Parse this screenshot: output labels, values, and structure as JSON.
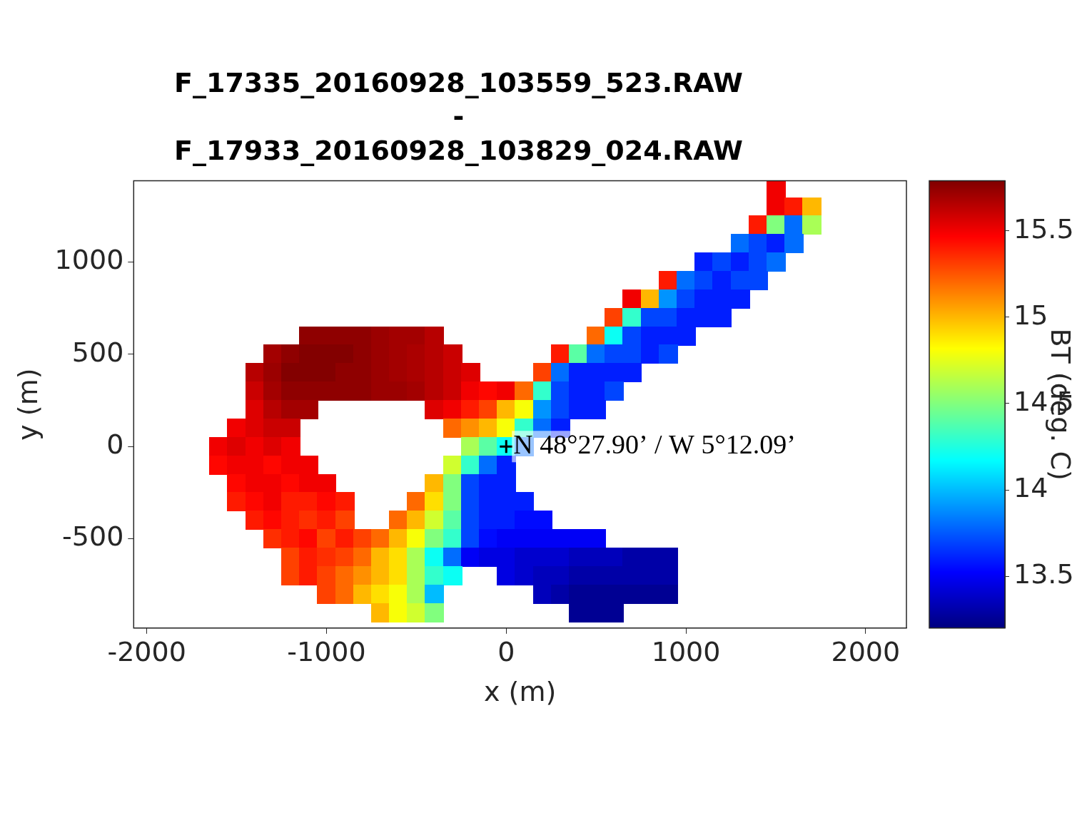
{
  "chart_data": {
    "type": "heatmap",
    "title": [
      "F_17335_20160928_103559_523.RAW",
      "-",
      "F_17933_20160928_103829_024.RAW"
    ],
    "x_label": "x (m)",
    "y_label": "y (m)",
    "xlim": [
      -2073,
      2227
    ],
    "ylim": [
      -984,
      1441
    ],
    "xticks": [
      -2000,
      -1000,
      0,
      1000,
      2000
    ],
    "yticks": [
      -500,
      0,
      500,
      1000
    ],
    "cell_size": 100,
    "cells": [
      [
        1500,
        1400,
        15.5
      ],
      [
        1500,
        1300,
        15.5
      ],
      [
        1600,
        1300,
        15.4
      ],
      [
        1700,
        1300,
        15.0
      ],
      [
        1400,
        1200,
        15.4
      ],
      [
        1500,
        1200,
        14.5
      ],
      [
        1600,
        1200,
        13.8
      ],
      [
        1700,
        1200,
        14.6
      ],
      [
        1300,
        1100,
        13.8
      ],
      [
        1400,
        1100,
        13.7
      ],
      [
        1500,
        1100,
        13.6
      ],
      [
        1600,
        1100,
        13.8
      ],
      [
        1100,
        1000,
        13.6
      ],
      [
        1200,
        1000,
        13.7
      ],
      [
        1300,
        1000,
        13.6
      ],
      [
        1400,
        1000,
        13.7
      ],
      [
        1500,
        1000,
        13.8
      ],
      [
        900,
        900,
        15.4
      ],
      [
        1000,
        900,
        13.8
      ],
      [
        1100,
        900,
        13.7
      ],
      [
        1200,
        900,
        13.6
      ],
      [
        1300,
        900,
        13.7
      ],
      [
        1400,
        900,
        13.7
      ],
      [
        700,
        800,
        15.5
      ],
      [
        800,
        800,
        15.0
      ],
      [
        900,
        800,
        13.9
      ],
      [
        1000,
        800,
        13.7
      ],
      [
        1100,
        800,
        13.6
      ],
      [
        1200,
        800,
        13.6
      ],
      [
        1300,
        800,
        13.6
      ],
      [
        600,
        700,
        15.3
      ],
      [
        700,
        700,
        14.3
      ],
      [
        800,
        700,
        13.7
      ],
      [
        900,
        700,
        13.7
      ],
      [
        1000,
        700,
        13.6
      ],
      [
        1100,
        700,
        13.6
      ],
      [
        1200,
        700,
        13.6
      ],
      [
        -1100,
        600,
        15.75
      ],
      [
        -1000,
        600,
        15.75
      ],
      [
        -900,
        600,
        15.75
      ],
      [
        -800,
        600,
        15.75
      ],
      [
        -700,
        600,
        15.72
      ],
      [
        -600,
        600,
        15.7
      ],
      [
        -500,
        600,
        15.7
      ],
      [
        -400,
        600,
        15.65
      ],
      [
        500,
        600,
        15.2
      ],
      [
        600,
        600,
        14.2
      ],
      [
        700,
        600,
        13.7
      ],
      [
        800,
        600,
        13.6
      ],
      [
        900,
        600,
        13.6
      ],
      [
        1000,
        600,
        13.6
      ],
      [
        -1300,
        500,
        15.7
      ],
      [
        -1200,
        500,
        15.75
      ],
      [
        -1100,
        500,
        15.78
      ],
      [
        -1000,
        500,
        15.78
      ],
      [
        -900,
        500,
        15.78
      ],
      [
        -800,
        500,
        15.75
      ],
      [
        -700,
        500,
        15.72
      ],
      [
        -600,
        500,
        15.7
      ],
      [
        -500,
        500,
        15.68
      ],
      [
        -400,
        500,
        15.65
      ],
      [
        -300,
        500,
        15.6
      ],
      [
        300,
        500,
        15.4
      ],
      [
        400,
        500,
        14.4
      ],
      [
        500,
        500,
        13.8
      ],
      [
        600,
        500,
        13.7
      ],
      [
        700,
        500,
        13.7
      ],
      [
        800,
        500,
        13.6
      ],
      [
        900,
        500,
        13.7
      ],
      [
        -1400,
        400,
        15.65
      ],
      [
        -1300,
        400,
        15.72
      ],
      [
        -1200,
        400,
        15.78
      ],
      [
        -1100,
        400,
        15.78
      ],
      [
        -1000,
        400,
        15.78
      ],
      [
        -900,
        400,
        15.75
      ],
      [
        -800,
        400,
        15.75
      ],
      [
        -700,
        400,
        15.72
      ],
      [
        -600,
        400,
        15.7
      ],
      [
        -500,
        400,
        15.68
      ],
      [
        -400,
        400,
        15.65
      ],
      [
        -300,
        400,
        15.6
      ],
      [
        -200,
        400,
        15.55
      ],
      [
        200,
        400,
        15.3
      ],
      [
        300,
        400,
        13.8
      ],
      [
        400,
        400,
        13.6
      ],
      [
        500,
        400,
        13.6
      ],
      [
        600,
        400,
        13.6
      ],
      [
        700,
        400,
        13.6
      ],
      [
        -1400,
        300,
        15.6
      ],
      [
        -1300,
        300,
        15.7
      ],
      [
        -1200,
        300,
        15.75
      ],
      [
        -1100,
        300,
        15.75
      ],
      [
        -1000,
        300,
        15.75
      ],
      [
        -900,
        300,
        15.75
      ],
      [
        -800,
        300,
        15.75
      ],
      [
        -700,
        300,
        15.72
      ],
      [
        -600,
        300,
        15.72
      ],
      [
        -500,
        300,
        15.7
      ],
      [
        -400,
        300,
        15.65
      ],
      [
        -300,
        300,
        15.6
      ],
      [
        -200,
        300,
        15.5
      ],
      [
        -100,
        300,
        15.45
      ],
      [
        0,
        300,
        15.5
      ],
      [
        100,
        300,
        15.2
      ],
      [
        200,
        300,
        14.3
      ],
      [
        300,
        300,
        13.7
      ],
      [
        400,
        300,
        13.6
      ],
      [
        500,
        300,
        13.6
      ],
      [
        600,
        300,
        13.7
      ],
      [
        -1400,
        200,
        15.55
      ],
      [
        -1300,
        200,
        15.65
      ],
      [
        -1200,
        200,
        15.7
      ],
      [
        -1100,
        200,
        15.7
      ],
      [
        -400,
        200,
        15.55
      ],
      [
        -300,
        200,
        15.5
      ],
      [
        -200,
        200,
        15.4
      ],
      [
        -100,
        200,
        15.3
      ],
      [
        0,
        200,
        15.0
      ],
      [
        100,
        200,
        14.8
      ],
      [
        200,
        200,
        13.9
      ],
      [
        300,
        200,
        13.7
      ],
      [
        400,
        200,
        13.6
      ],
      [
        500,
        200,
        13.6
      ],
      [
        -1500,
        100,
        15.5
      ],
      [
        -1400,
        100,
        15.55
      ],
      [
        -1300,
        100,
        15.6
      ],
      [
        -1200,
        100,
        15.6
      ],
      [
        -300,
        100,
        15.2
      ],
      [
        -200,
        100,
        15.1
      ],
      [
        -100,
        100,
        15.0
      ],
      [
        0,
        100,
        14.8
      ],
      [
        100,
        100,
        14.3
      ],
      [
        200,
        100,
        13.8
      ],
      [
        300,
        100,
        13.6
      ],
      [
        -1600,
        0,
        15.5
      ],
      [
        -1500,
        0,
        15.55
      ],
      [
        -1400,
        0,
        15.5
      ],
      [
        -1300,
        0,
        15.55
      ],
      [
        -1200,
        0,
        15.5
      ],
      [
        -200,
        0,
        14.6
      ],
      [
        -100,
        0,
        14.4
      ],
      [
        0,
        0,
        14.2
      ],
      [
        100,
        0,
        13.8
      ],
      [
        -1600,
        -100,
        15.45
      ],
      [
        -1500,
        -100,
        15.5
      ],
      [
        -1400,
        -100,
        15.5
      ],
      [
        -1300,
        -100,
        15.45
      ],
      [
        -1200,
        -100,
        15.5
      ],
      [
        -1100,
        -100,
        15.5
      ],
      [
        -300,
        -100,
        14.7
      ],
      [
        -200,
        -100,
        14.3
      ],
      [
        -100,
        -100,
        13.8
      ],
      [
        0,
        -100,
        13.6
      ],
      [
        -1500,
        -200,
        15.45
      ],
      [
        -1400,
        -200,
        15.5
      ],
      [
        -1300,
        -200,
        15.5
      ],
      [
        -1200,
        -200,
        15.45
      ],
      [
        -1100,
        -200,
        15.5
      ],
      [
        -1000,
        -200,
        15.5
      ],
      [
        -400,
        -200,
        15.0
      ],
      [
        -300,
        -200,
        14.5
      ],
      [
        -200,
        -200,
        13.7
      ],
      [
        -100,
        -200,
        13.6
      ],
      [
        0,
        -200,
        13.6
      ],
      [
        -1500,
        -300,
        15.4
      ],
      [
        -1400,
        -300,
        15.45
      ],
      [
        -1300,
        -300,
        15.5
      ],
      [
        -1200,
        -300,
        15.4
      ],
      [
        -1100,
        -300,
        15.4
      ],
      [
        -1000,
        -300,
        15.45
      ],
      [
        -900,
        -300,
        15.4
      ],
      [
        -500,
        -300,
        15.2
      ],
      [
        -400,
        -300,
        14.9
      ],
      [
        -300,
        -300,
        14.5
      ],
      [
        -200,
        -300,
        13.7
      ],
      [
        -100,
        -300,
        13.6
      ],
      [
        0,
        -300,
        13.6
      ],
      [
        100,
        -300,
        13.6
      ],
      [
        -1400,
        -400,
        15.4
      ],
      [
        -1300,
        -400,
        15.45
      ],
      [
        -1200,
        -400,
        15.4
      ],
      [
        -1100,
        -400,
        15.35
      ],
      [
        -1000,
        -400,
        15.4
      ],
      [
        -900,
        -400,
        15.3
      ],
      [
        -600,
        -400,
        15.2
      ],
      [
        -500,
        -400,
        15.0
      ],
      [
        -400,
        -400,
        14.7
      ],
      [
        -300,
        -400,
        14.4
      ],
      [
        -200,
        -400,
        13.7
      ],
      [
        -100,
        -400,
        13.6
      ],
      [
        0,
        -400,
        13.6
      ],
      [
        100,
        -400,
        13.55
      ],
      [
        200,
        -400,
        13.55
      ],
      [
        -1300,
        -500,
        15.35
      ],
      [
        -1200,
        -500,
        15.4
      ],
      [
        -1100,
        -500,
        15.45
      ],
      [
        -1000,
        -500,
        15.3
      ],
      [
        -900,
        -500,
        15.4
      ],
      [
        -800,
        -500,
        15.3
      ],
      [
        -700,
        -500,
        15.2
      ],
      [
        -600,
        -500,
        15.0
      ],
      [
        -500,
        -500,
        14.8
      ],
      [
        -400,
        -500,
        14.5
      ],
      [
        -300,
        -500,
        14.3
      ],
      [
        -200,
        -500,
        13.7
      ],
      [
        -100,
        -500,
        13.55
      ],
      [
        0,
        -500,
        13.5
      ],
      [
        100,
        -500,
        13.5
      ],
      [
        200,
        -500,
        13.5
      ],
      [
        300,
        -500,
        13.5
      ],
      [
        400,
        -500,
        13.5
      ],
      [
        500,
        -500,
        13.5
      ],
      [
        -1200,
        -600,
        15.3
      ],
      [
        -1100,
        -600,
        15.4
      ],
      [
        -1000,
        -600,
        15.35
      ],
      [
        -900,
        -600,
        15.3
      ],
      [
        -800,
        -600,
        15.2
      ],
      [
        -700,
        -600,
        15.0
      ],
      [
        -600,
        -600,
        14.9
      ],
      [
        -500,
        -600,
        14.6
      ],
      [
        -400,
        -600,
        14.2
      ],
      [
        -300,
        -600,
        13.8
      ],
      [
        -200,
        -600,
        13.5
      ],
      [
        -100,
        -600,
        13.45
      ],
      [
        0,
        -600,
        13.45
      ],
      [
        100,
        -600,
        13.4
      ],
      [
        200,
        -600,
        13.4
      ],
      [
        300,
        -600,
        13.4
      ],
      [
        400,
        -600,
        13.35
      ],
      [
        500,
        -600,
        13.35
      ],
      [
        600,
        -600,
        13.35
      ],
      [
        700,
        -600,
        13.3
      ],
      [
        800,
        -600,
        13.3
      ],
      [
        900,
        -600,
        13.3
      ],
      [
        -1200,
        -700,
        15.3
      ],
      [
        -1100,
        -700,
        15.4
      ],
      [
        -1000,
        -700,
        15.3
      ],
      [
        -900,
        -700,
        15.2
      ],
      [
        -800,
        -700,
        15.1
      ],
      [
        -700,
        -700,
        15.0
      ],
      [
        -600,
        -700,
        14.9
      ],
      [
        -500,
        -700,
        14.6
      ],
      [
        -400,
        -700,
        14.3
      ],
      [
        -300,
        -700,
        14.2
      ],
      [
        0,
        -700,
        13.45
      ],
      [
        100,
        -700,
        13.4
      ],
      [
        200,
        -700,
        13.35
      ],
      [
        300,
        -700,
        13.35
      ],
      [
        400,
        -700,
        13.3
      ],
      [
        500,
        -700,
        13.3
      ],
      [
        600,
        -700,
        13.3
      ],
      [
        700,
        -700,
        13.3
      ],
      [
        800,
        -700,
        13.3
      ],
      [
        900,
        -700,
        13.3
      ],
      [
        -1000,
        -800,
        15.3
      ],
      [
        -900,
        -800,
        15.2
      ],
      [
        -800,
        -800,
        15.0
      ],
      [
        -700,
        -800,
        14.9
      ],
      [
        -600,
        -800,
        14.8
      ],
      [
        -500,
        -800,
        14.6
      ],
      [
        -400,
        -800,
        14.0
      ],
      [
        200,
        -800,
        13.35
      ],
      [
        300,
        -800,
        13.3
      ],
      [
        400,
        -800,
        13.25
      ],
      [
        500,
        -800,
        13.25
      ],
      [
        600,
        -800,
        13.25
      ],
      [
        700,
        -800,
        13.25
      ],
      [
        800,
        -800,
        13.25
      ],
      [
        900,
        -800,
        13.25
      ],
      [
        -700,
        -900,
        15.0
      ],
      [
        -600,
        -900,
        14.8
      ],
      [
        -500,
        -900,
        14.7
      ],
      [
        -400,
        -900,
        14.5
      ],
      [
        400,
        -900,
        13.25
      ],
      [
        500,
        -900,
        13.25
      ],
      [
        600,
        -900,
        13.25
      ]
    ],
    "colorbar": {
      "label": "BT (deg. C)",
      "range": [
        13.2,
        15.79
      ],
      "ticks": [
        13.5,
        14,
        14.5,
        15,
        15.5
      ]
    },
    "annotations": [
      {
        "text": "N 48°27.90’ / W 5°12.09’",
        "x": 0,
        "y": 0,
        "marker": "+"
      }
    ]
  }
}
